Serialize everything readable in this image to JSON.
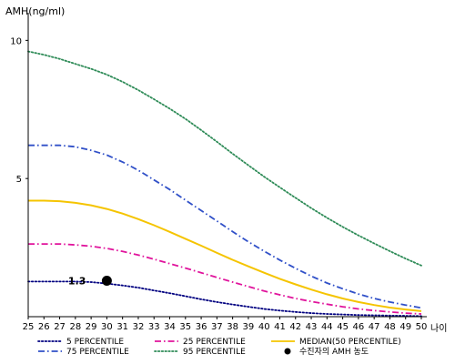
{
  "chart_data": {
    "type": "line",
    "ylabel": "AMH(ng/ml)",
    "xlabel": "나이",
    "xlim": [
      25,
      50
    ],
    "ylim": [
      0,
      11
    ],
    "x_ticks": [
      25,
      26,
      27,
      28,
      29,
      30,
      31,
      32,
      33,
      34,
      35,
      36,
      37,
      38,
      39,
      40,
      41,
      42,
      43,
      44,
      45,
      46,
      47,
      48,
      49,
      50
    ],
    "y_ticks": [
      5,
      10
    ],
    "grid": false,
    "legend_position": "bottom",
    "series": [
      {
        "name": "5 PERCENTILE",
        "color": "#000080",
        "style": "dotted",
        "x": [
          25,
          26,
          27,
          28,
          29,
          30,
          31,
          32,
          33,
          34,
          35,
          36,
          37,
          38,
          39,
          40,
          41,
          42,
          43,
          44,
          45,
          46,
          47,
          48,
          49,
          50
        ],
        "values": [
          1.27,
          1.27,
          1.27,
          1.27,
          1.25,
          1.2,
          1.13,
          1.05,
          0.95,
          0.85,
          0.74,
          0.63,
          0.53,
          0.44,
          0.36,
          0.28,
          0.22,
          0.17,
          0.13,
          0.1,
          0.08,
          0.06,
          0.05,
          0.04,
          0.03,
          0.02
        ]
      },
      {
        "name": "25 PERCENTILE",
        "color": "#e0149c",
        "style": "dashdot",
        "x": [
          25,
          26,
          27,
          28,
          29,
          30,
          31,
          32,
          33,
          34,
          35,
          36,
          37,
          38,
          39,
          40,
          41,
          42,
          43,
          44,
          45,
          46,
          47,
          48,
          49,
          50
        ],
        "values": [
          2.63,
          2.63,
          2.63,
          2.6,
          2.55,
          2.47,
          2.36,
          2.23,
          2.08,
          1.92,
          1.76,
          1.59,
          1.42,
          1.25,
          1.09,
          0.93,
          0.79,
          0.66,
          0.55,
          0.45,
          0.36,
          0.28,
          0.22,
          0.17,
          0.13,
          0.1
        ]
      },
      {
        "name": "MEDIAN(50 PERCENTILE)",
        "color": "#f5c400",
        "style": "solid",
        "x": [
          25,
          26,
          27,
          28,
          29,
          30,
          31,
          32,
          33,
          34,
          35,
          36,
          37,
          38,
          39,
          40,
          41,
          42,
          43,
          44,
          45,
          46,
          47,
          48,
          49,
          50
        ],
        "values": [
          4.2,
          4.2,
          4.18,
          4.12,
          4.03,
          3.9,
          3.73,
          3.53,
          3.31,
          3.07,
          2.82,
          2.57,
          2.31,
          2.06,
          1.82,
          1.59,
          1.37,
          1.17,
          0.98,
          0.81,
          0.66,
          0.53,
          0.42,
          0.33,
          0.26,
          0.2
        ]
      },
      {
        "name": "75 PERCENTILE",
        "color": "#3050c8",
        "style": "dashdot",
        "x": [
          25,
          26,
          27,
          28,
          29,
          30,
          31,
          32,
          33,
          34,
          35,
          36,
          37,
          38,
          39,
          40,
          41,
          42,
          43,
          44,
          45,
          46,
          47,
          48,
          49,
          50
        ],
        "values": [
          6.2,
          6.2,
          6.2,
          6.15,
          6.02,
          5.85,
          5.6,
          5.3,
          4.95,
          4.6,
          4.22,
          3.84,
          3.46,
          3.08,
          2.71,
          2.37,
          2.05,
          1.75,
          1.47,
          1.22,
          1.01,
          0.82,
          0.66,
          0.53,
          0.42,
          0.32
        ]
      },
      {
        "name": "95 PERCENTILE",
        "color": "#2e8b57",
        "style": "dotted",
        "x": [
          25,
          26,
          27,
          28,
          29,
          30,
          31,
          32,
          33,
          34,
          35,
          36,
          37,
          38,
          39,
          40,
          41,
          42,
          43,
          44,
          45,
          46,
          47,
          48,
          49,
          50
        ],
        "values": [
          9.6,
          9.48,
          9.33,
          9.15,
          8.97,
          8.76,
          8.5,
          8.2,
          7.87,
          7.53,
          7.16,
          6.75,
          6.33,
          5.9,
          5.48,
          5.07,
          4.68,
          4.3,
          3.93,
          3.58,
          3.25,
          2.94,
          2.65,
          2.37,
          2.1,
          1.85
        ]
      }
    ],
    "annotation": {
      "label": "수진자의 AMH 농도",
      "x": 30,
      "y": 1.3,
      "value_text": "1.3"
    }
  }
}
